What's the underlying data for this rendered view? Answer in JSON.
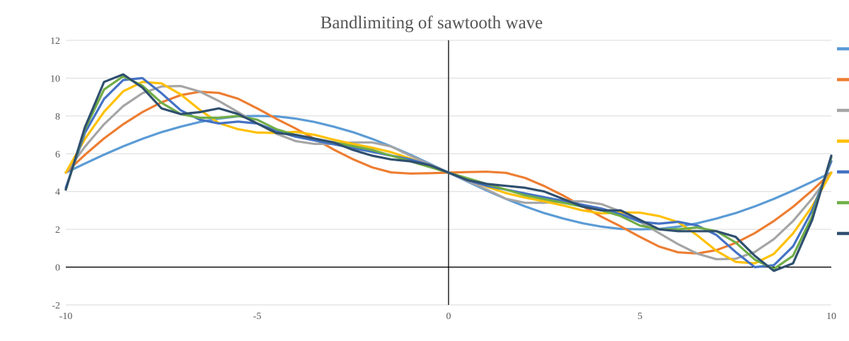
{
  "chart_data": {
    "type": "line",
    "title": "Bandlimiting of sawtooth wave",
    "xlabel": "",
    "ylabel": "",
    "xlim": [
      -10,
      10
    ],
    "ylim": [
      -2,
      12
    ],
    "x_ticks": [
      "-10",
      "-5",
      "0",
      "5",
      "10"
    ],
    "y_ticks": [
      "-2",
      "0",
      "2",
      "4",
      "6",
      "8",
      "10",
      "12"
    ],
    "grid": "horizontal",
    "legend": "right, labels cut off",
    "x": [
      -10,
      -9.5,
      -9,
      -8.5,
      -8,
      -7.5,
      -7,
      -6.5,
      -6,
      -5.5,
      -5,
      -4.5,
      -4,
      -3.5,
      -3,
      -2.5,
      -2,
      -1.5,
      -1,
      -0.5,
      0,
      0.5,
      1,
      1.5,
      2,
      2.5,
      3,
      3.5,
      4,
      4.5,
      5,
      5.5,
      6,
      6.5,
      7,
      7.5,
      8,
      8.5,
      9,
      9.5,
      10
    ],
    "series": [
      {
        "color": "#5B9BD5",
        "values": [
          5.0,
          5.48,
          5.95,
          6.39,
          6.79,
          7.14,
          7.43,
          7.68,
          7.86,
          7.98,
          8.0,
          7.98,
          7.86,
          7.68,
          7.43,
          7.14,
          6.79,
          6.39,
          5.95,
          5.48,
          5.0,
          4.52,
          4.05,
          3.61,
          3.21,
          2.86,
          2.57,
          2.32,
          2.14,
          2.02,
          2.0,
          2.02,
          2.14,
          2.32,
          2.57,
          2.86,
          3.21,
          3.61,
          4.05,
          4.52,
          5.0
        ]
      },
      {
        "color": "#ED7D31",
        "values": [
          5.0,
          5.94,
          6.81,
          7.56,
          8.2,
          8.72,
          9.1,
          9.28,
          9.22,
          8.91,
          8.4,
          7.85,
          7.34,
          6.78,
          6.22,
          5.71,
          5.28,
          5.01,
          4.95,
          4.97,
          5.0,
          5.03,
          5.05,
          4.99,
          4.72,
          4.29,
          3.78,
          3.22,
          2.66,
          2.15,
          1.6,
          1.09,
          0.78,
          0.72,
          0.9,
          1.28,
          1.8,
          2.44,
          3.19,
          4.06,
          5.0
        ]
      },
      {
        "color": "#A5A5A5",
        "values": [
          5.0,
          6.37,
          7.56,
          8.52,
          9.2,
          9.56,
          9.58,
          9.29,
          8.79,
          8.2,
          7.6,
          7.06,
          6.67,
          6.52,
          6.52,
          6.6,
          6.6,
          6.38,
          5.9,
          5.44,
          5.0,
          4.56,
          4.1,
          3.62,
          3.4,
          3.4,
          3.48,
          3.48,
          3.33,
          2.94,
          2.4,
          1.8,
          1.21,
          0.71,
          0.42,
          0.44,
          0.8,
          1.48,
          2.44,
          3.63,
          5.0
        ]
      },
      {
        "color": "#FFC000",
        "values": [
          5.0,
          6.78,
          8.22,
          9.3,
          9.8,
          9.72,
          9.14,
          8.32,
          7.62,
          7.3,
          7.12,
          7.1,
          7.16,
          7.0,
          6.74,
          6.52,
          6.32,
          6.08,
          5.74,
          5.36,
          5.0,
          4.64,
          4.26,
          3.92,
          3.68,
          3.48,
          3.26,
          3.0,
          2.84,
          2.9,
          2.88,
          2.7,
          2.38,
          1.68,
          0.86,
          0.28,
          0.2,
          0.7,
          1.78,
          3.22,
          5.0
        ]
      },
      {
        "color": "#4472C4",
        "values": [
          4.2,
          7.1,
          8.9,
          9.9,
          10.0,
          9.2,
          8.3,
          7.8,
          7.6,
          7.7,
          7.6,
          7.2,
          6.9,
          6.7,
          6.5,
          6.3,
          6.1,
          5.9,
          5.7,
          5.4,
          5.0,
          4.6,
          4.3,
          4.1,
          3.9,
          3.7,
          3.5,
          3.3,
          3.1,
          2.8,
          2.4,
          2.3,
          2.4,
          2.2,
          1.7,
          0.8,
          0.0,
          0.1,
          1.1,
          3.0,
          5.6
        ]
      },
      {
        "color": "#70AD47",
        "values": [
          4.1,
          7.3,
          9.4,
          10.1,
          9.6,
          8.7,
          8.1,
          7.9,
          7.9,
          8.0,
          7.8,
          7.3,
          7.0,
          6.8,
          6.6,
          6.4,
          6.2,
          5.9,
          5.6,
          5.3,
          5.0,
          4.7,
          4.4,
          4.1,
          3.8,
          3.6,
          3.4,
          3.2,
          3.0,
          2.7,
          2.2,
          2.0,
          2.0,
          2.1,
          1.9,
          1.3,
          0.4,
          -0.1,
          0.6,
          2.7,
          5.8
        ]
      },
      {
        "color": "#2F4F6F",
        "values": [
          4.1,
          7.4,
          9.8,
          10.2,
          9.5,
          8.4,
          8.1,
          8.2,
          8.4,
          8.1,
          7.6,
          7.1,
          7.0,
          6.8,
          6.6,
          6.2,
          5.9,
          5.7,
          5.6,
          5.4,
          5.0,
          4.6,
          4.4,
          4.3,
          4.2,
          4.0,
          3.6,
          3.2,
          3.0,
          3.0,
          2.5,
          2.0,
          1.9,
          1.9,
          1.9,
          1.6,
          0.6,
          -0.2,
          0.2,
          2.5,
          5.9
        ]
      }
    ]
  }
}
